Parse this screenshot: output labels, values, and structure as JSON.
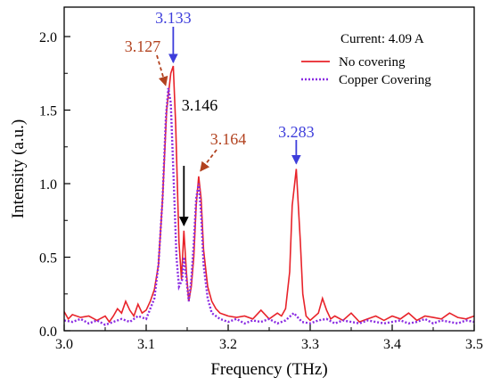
{
  "chart_data": {
    "type": "line",
    "xlabel": "Frequency (THz)",
    "ylabel": "Intensity (a.u.)",
    "xlim": [
      3.0,
      3.5
    ],
    "ylim": [
      0.0,
      2.2
    ],
    "x_ticks": [
      "3.0",
      "3.1",
      "3.2",
      "3.3",
      "3.4",
      "3.5"
    ],
    "y_ticks": [
      "0.0",
      "0.5",
      "1.0",
      "1.5",
      "2.0"
    ],
    "grid": false,
    "legend_position": "top-right",
    "legend_title": "Current: 4.09 A",
    "series": [
      {
        "name": "No covering",
        "color": "#e8232a",
        "style": "solid",
        "x": [
          3.0,
          3.005,
          3.01,
          3.02,
          3.03,
          3.04,
          3.05,
          3.055,
          3.06,
          3.065,
          3.07,
          3.075,
          3.08,
          3.085,
          3.09,
          3.095,
          3.1,
          3.105,
          3.11,
          3.115,
          3.12,
          3.125,
          3.13,
          3.133,
          3.136,
          3.14,
          3.143,
          3.146,
          3.149,
          3.152,
          3.155,
          3.158,
          3.161,
          3.164,
          3.167,
          3.17,
          3.175,
          3.18,
          3.185,
          3.19,
          3.2,
          3.21,
          3.22,
          3.23,
          3.24,
          3.25,
          3.26,
          3.265,
          3.27,
          3.275,
          3.278,
          3.283,
          3.288,
          3.291,
          3.295,
          3.3,
          3.31,
          3.315,
          3.32,
          3.325,
          3.33,
          3.34,
          3.35,
          3.36,
          3.37,
          3.38,
          3.39,
          3.4,
          3.41,
          3.42,
          3.43,
          3.44,
          3.45,
          3.46,
          3.47,
          3.48,
          3.49,
          3.5
        ],
        "values": [
          0.13,
          0.08,
          0.11,
          0.09,
          0.1,
          0.07,
          0.1,
          0.06,
          0.1,
          0.15,
          0.12,
          0.2,
          0.14,
          0.1,
          0.18,
          0.12,
          0.14,
          0.2,
          0.28,
          0.45,
          0.9,
          1.5,
          1.75,
          1.8,
          1.4,
          0.6,
          0.35,
          0.68,
          0.4,
          0.2,
          0.3,
          0.5,
          0.85,
          1.05,
          0.9,
          0.55,
          0.3,
          0.2,
          0.15,
          0.12,
          0.1,
          0.09,
          0.1,
          0.08,
          0.14,
          0.08,
          0.12,
          0.1,
          0.15,
          0.4,
          0.85,
          1.1,
          0.6,
          0.25,
          0.1,
          0.07,
          0.12,
          0.22,
          0.14,
          0.08,
          0.1,
          0.07,
          0.12,
          0.06,
          0.08,
          0.1,
          0.07,
          0.1,
          0.08,
          0.12,
          0.07,
          0.1,
          0.09,
          0.08,
          0.12,
          0.09,
          0.08,
          0.1
        ]
      },
      {
        "name": "Copper Covering",
        "color": "#8a2be2",
        "style": "dotted",
        "x": [
          3.0,
          3.01,
          3.02,
          3.03,
          3.04,
          3.05,
          3.06,
          3.07,
          3.08,
          3.09,
          3.1,
          3.105,
          3.11,
          3.115,
          3.12,
          3.124,
          3.127,
          3.13,
          3.133,
          3.137,
          3.14,
          3.144,
          3.146,
          3.149,
          3.152,
          3.155,
          3.158,
          3.161,
          3.164,
          3.167,
          3.17,
          3.175,
          3.18,
          3.19,
          3.2,
          3.21,
          3.22,
          3.23,
          3.24,
          3.25,
          3.26,
          3.27,
          3.28,
          3.29,
          3.3,
          3.31,
          3.32,
          3.33,
          3.34,
          3.35,
          3.36,
          3.37,
          3.38,
          3.39,
          3.4,
          3.41,
          3.42,
          3.43,
          3.44,
          3.45,
          3.46,
          3.47,
          3.48,
          3.49,
          3.5
        ],
        "values": [
          0.07,
          0.06,
          0.08,
          0.05,
          0.07,
          0.04,
          0.06,
          0.08,
          0.06,
          0.1,
          0.08,
          0.15,
          0.22,
          0.45,
          0.9,
          1.45,
          1.65,
          1.55,
          1.1,
          0.5,
          0.3,
          0.35,
          0.5,
          0.35,
          0.2,
          0.35,
          0.6,
          0.9,
          1.0,
          0.8,
          0.45,
          0.22,
          0.12,
          0.08,
          0.06,
          0.08,
          0.05,
          0.07,
          0.06,
          0.08,
          0.05,
          0.07,
          0.12,
          0.06,
          0.05,
          0.07,
          0.08,
          0.05,
          0.07,
          0.06,
          0.05,
          0.07,
          0.06,
          0.05,
          0.06,
          0.07,
          0.05,
          0.06,
          0.08,
          0.05,
          0.07,
          0.06,
          0.05,
          0.07,
          0.06
        ]
      }
    ],
    "annotations": [
      {
        "text": "3.133",
        "color": "#3d3ddb",
        "x": 3.133,
        "y": 1.8,
        "arrow": "solid"
      },
      {
        "text": "3.127",
        "color": "#b2421f",
        "x": 3.127,
        "y": 1.65,
        "arrow": "dashed"
      },
      {
        "text": "3.146",
        "color": "#000000",
        "x": 3.146,
        "y": 0.68,
        "arrow": "solid"
      },
      {
        "text": "3.164",
        "color": "#b2421f",
        "x": 3.164,
        "y": 1.05,
        "arrow": "dashed"
      },
      {
        "text": "3.283",
        "color": "#3d3ddb",
        "x": 3.283,
        "y": 1.1,
        "arrow": "solid"
      }
    ]
  }
}
